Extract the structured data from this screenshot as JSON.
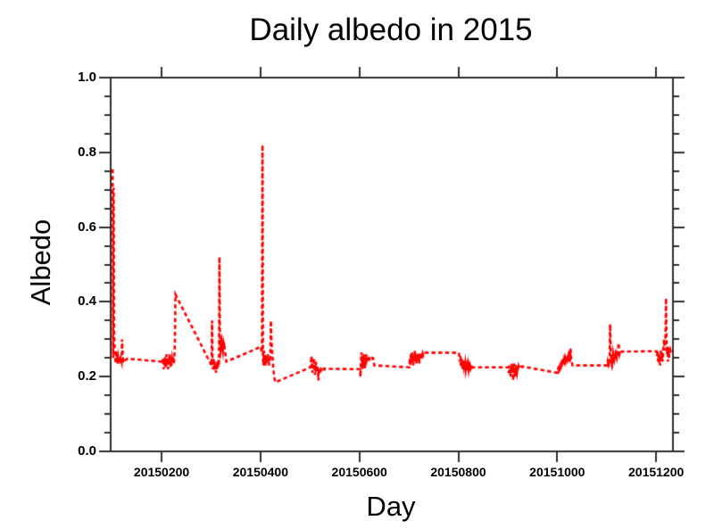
{
  "chart_data": {
    "type": "line",
    "title": "Daily albedo in 2015",
    "xlabel": "Day",
    "ylabel": "Albedo",
    "grid": false,
    "legend": "none",
    "line_color": "#ff0000",
    "line_style": "dashed",
    "axis_color": "#2f2f2f",
    "x_axis": {
      "lim": [
        20150097,
        20151234
      ],
      "ticks": [
        {
          "value": 20150200,
          "label": "20150200"
        },
        {
          "value": 20150400,
          "label": "20150400"
        },
        {
          "value": 20150600,
          "label": "20150600"
        },
        {
          "value": 20150800,
          "label": "20150800"
        },
        {
          "value": 20151000,
          "label": "20151000"
        },
        {
          "value": 20151200,
          "label": "20151200"
        }
      ]
    },
    "y_axis": {
      "lim": [
        0.0,
        1.0
      ],
      "ticks": [
        {
          "value": 0.0,
          "label": "0.0"
        },
        {
          "value": 0.2,
          "label": "0.2"
        },
        {
          "value": 0.4,
          "label": "0.4"
        },
        {
          "value": 0.6,
          "label": "0.6"
        },
        {
          "value": 0.8,
          "label": "0.8"
        },
        {
          "value": 1.0,
          "label": "1.0"
        }
      ],
      "minor_step": 0.05
    },
    "series": [
      {
        "name": "daily albedo",
        "year": 2015,
        "color": "#ff0000",
        "dash": [
          4.5,
          3.2
        ],
        "months": [
          {
            "month": 1,
            "values": [
              0.755,
              0.25,
              0.705,
              0.32,
              0.28,
              0.26,
              0.235,
              0.27,
              0.24,
              0.255,
              0.235,
              0.25,
              0.24,
              0.245,
              0.242,
              0.246,
              0.25,
              0.245,
              0.24,
              0.3,
              0.27,
              0.246,
              0.243,
              0.246,
              0.244,
              0.247,
              0.245,
              0.246,
              0.247,
              0.246,
              0.248
            ]
          },
          {
            "month": 2,
            "values": [
              0.24,
              0.235,
              0.25,
              0.22,
              0.245,
              0.23,
              0.255,
              0.225,
              0.24,
              0.26,
              0.23,
              0.245,
              0.22,
              0.25,
              0.235,
              0.26,
              0.24,
              0.225,
              0.25,
              0.23,
              0.245,
              0.235,
              0.255,
              0.24,
              0.235,
              0.26,
              0.3,
              0.42
            ]
          },
          {
            "month": 3,
            "values": [
              0.23,
              0.35,
              0.24,
              0.22,
              0.25,
              0.215,
              0.24,
              0.22,
              0.235,
              0.21,
              0.23,
              0.22,
              0.24,
              0.225,
              0.245,
              0.23,
              0.52,
              0.28,
              0.27,
              0.285,
              0.275,
              0.29,
              0.28,
              0.27,
              0.285,
              0.275,
              0.28,
              0.27,
              0.26,
              0.25,
              0.24
            ]
          },
          {
            "month": 4,
            "values": [
              0.28,
              0.265,
              0.275,
              0.82,
              0.25,
              0.23,
              0.27,
              0.24,
              0.26,
              0.23,
              0.25,
              0.235,
              0.255,
              0.24,
              0.26,
              0.245,
              0.23,
              0.25,
              0.24,
              0.26,
              0.35,
              0.3,
              0.28,
              0.26,
              0.24,
              0.22,
              0.21,
              0.2,
              0.19,
              0.185
            ]
          },
          {
            "month": 5,
            "values": [
              0.225,
              0.24,
              0.255,
              0.23,
              0.21,
              0.245,
              0.225,
              0.25,
              0.23,
              0.205,
              0.22,
              0.24,
              0.21,
              0.23,
              0.215,
              0.225,
              0.19,
              0.215,
              0.22,
              0.215,
              0.218,
              0.22,
              0.217,
              0.219,
              0.221,
              0.218,
              0.22,
              0.219,
              0.221,
              0.22,
              0.221
            ]
          },
          {
            "month": 6,
            "values": [
              0.22,
              0.2,
              0.235,
              0.265,
              0.24,
              0.22,
              0.255,
              0.23,
              0.26,
              0.24,
              0.22,
              0.25,
              0.235,
              0.26,
              0.245,
              0.25,
              0.245,
              0.248,
              0.246,
              0.249,
              0.247,
              0.248,
              0.25,
              0.247,
              0.249,
              0.248,
              0.25,
              0.249,
              0.24,
              0.23
            ]
          },
          {
            "month": 7,
            "values": [
              0.225,
              0.25,
              0.23,
              0.26,
              0.24,
              0.265,
              0.235,
              0.255,
              0.23,
              0.26,
              0.245,
              0.27,
              0.24,
              0.26,
              0.235,
              0.255,
              0.245,
              0.265,
              0.24,
              0.255,
              0.235,
              0.26,
              0.25,
              0.265,
              0.245,
              0.26,
              0.255,
              0.262,
              0.258,
              0.263,
              0.264
            ]
          },
          {
            "month": 8,
            "values": [
              0.264,
              0.255,
              0.24,
              0.255,
              0.23,
              0.25,
              0.225,
              0.245,
              0.22,
              0.24,
              0.23,
              0.245,
              0.225,
              0.235,
              0.22,
              0.23,
              0.215,
              0.228,
              0.22,
              0.23,
              0.218,
              0.226,
              0.22,
              0.228,
              0.222,
              0.226,
              0.224,
              0.226,
              0.224,
              0.225,
              0.225
            ]
          },
          {
            "month": 9,
            "values": [
              0.225,
              0.21,
              0.23,
              0.205,
              0.225,
              0.2,
              0.22,
              0.235,
              0.21,
              0.23,
              0.19,
              0.215,
              0.235,
              0.22,
              0.2,
              0.225,
              0.21,
              0.23,
              0.215,
              0.225,
              0.22,
              0.228,
              0.224,
              0.227,
              0.225,
              0.226,
              0.227,
              0.226,
              0.227,
              0.227
            ]
          },
          {
            "month": 10,
            "values": [
              0.21,
              0.225,
              0.21,
              0.23,
              0.215,
              0.235,
              0.22,
              0.24,
              0.225,
              0.245,
              0.23,
              0.25,
              0.235,
              0.245,
              0.24,
              0.25,
              0.245,
              0.255,
              0.25,
              0.245,
              0.25,
              0.255,
              0.25,
              0.26,
              0.27,
              0.24,
              0.275,
              0.25,
              0.24,
              0.235,
              0.23
            ]
          },
          {
            "month": 11,
            "values": [
              0.23,
              0.24,
              0.235,
              0.245,
              0.24,
              0.25,
              0.34,
              0.27,
              0.25,
              0.24,
              0.255,
              0.245,
              0.26,
              0.25,
              0.245,
              0.255,
              0.25,
              0.26,
              0.255,
              0.25,
              0.26,
              0.255,
              0.265,
              0.29,
              0.27,
              0.26,
              0.265,
              0.262,
              0.266,
              0.267
            ]
          },
          {
            "month": 12,
            "values": [
              0.268,
              0.255,
              0.27,
              0.24,
              0.26,
              0.235,
              0.255,
              0.23,
              0.25,
              0.27,
              0.245,
              0.265,
              0.24,
              0.26,
              0.28,
              0.3,
              0.27,
              0.29,
              0.31,
              0.41,
              0.3,
              0.26,
              0.28,
              0.24,
              0.27,
              0.25,
              0.28,
              0.26,
              0.27,
              0.265,
              0.27
            ]
          }
        ]
      }
    ]
  }
}
